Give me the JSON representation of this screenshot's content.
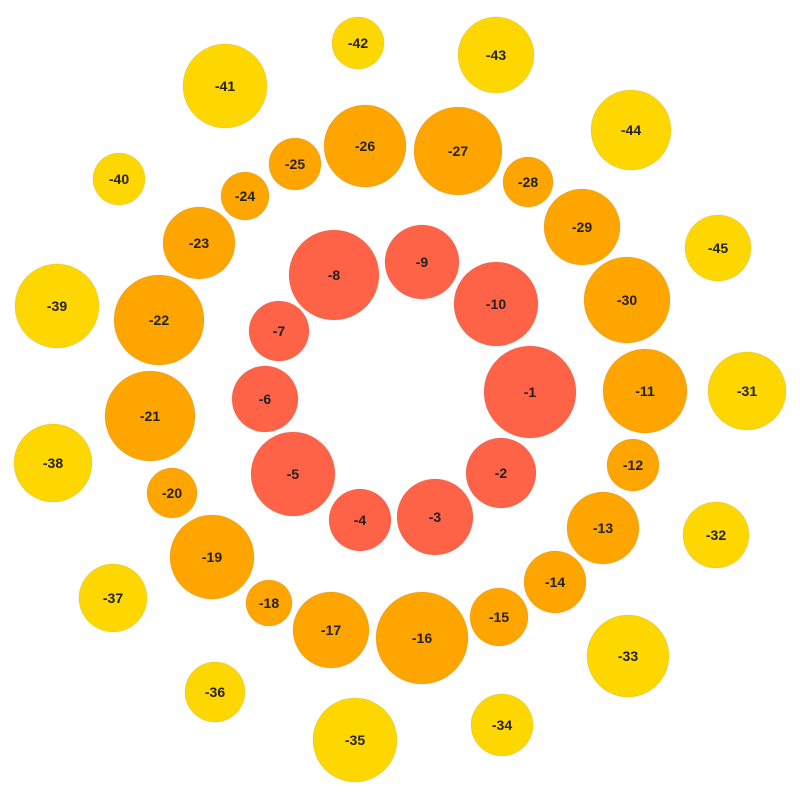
{
  "colors": {
    "inner": "#ff6347",
    "middle": "#ffa500",
    "outer": "#ffd700",
    "label": "#222222"
  },
  "bubbles": [
    {
      "label": "-1",
      "ring": "inner",
      "value": 1
    },
    {
      "label": "-2",
      "ring": "inner",
      "value": 2
    },
    {
      "label": "-3",
      "ring": "inner",
      "value": 3
    },
    {
      "label": "-4",
      "ring": "inner",
      "value": 4
    },
    {
      "label": "-5",
      "ring": "inner",
      "value": 5
    },
    {
      "label": "-6",
      "ring": "inner",
      "value": 6
    },
    {
      "label": "-7",
      "ring": "inner",
      "value": 7
    },
    {
      "label": "-8",
      "ring": "inner",
      "value": 8
    },
    {
      "label": "-9",
      "ring": "inner",
      "value": 9
    },
    {
      "label": "-10",
      "ring": "inner",
      "value": 10
    },
    {
      "label": "-11",
      "ring": "middle",
      "value": 11
    },
    {
      "label": "-12",
      "ring": "middle",
      "value": 12
    },
    {
      "label": "-13",
      "ring": "middle",
      "value": 13
    },
    {
      "label": "-14",
      "ring": "middle",
      "value": 14
    },
    {
      "label": "-15",
      "ring": "middle",
      "value": 15
    },
    {
      "label": "-16",
      "ring": "middle",
      "value": 16
    },
    {
      "label": "-17",
      "ring": "middle",
      "value": 17
    },
    {
      "label": "-18",
      "ring": "middle",
      "value": 18
    },
    {
      "label": "-19",
      "ring": "middle",
      "value": 19
    },
    {
      "label": "-20",
      "ring": "middle",
      "value": 20
    },
    {
      "label": "-21",
      "ring": "middle",
      "value": 21
    },
    {
      "label": "-22",
      "ring": "middle",
      "value": 22
    },
    {
      "label": "-23",
      "ring": "middle",
      "value": 23
    },
    {
      "label": "-24",
      "ring": "middle",
      "value": 24
    },
    {
      "label": "-25",
      "ring": "middle",
      "value": 25
    },
    {
      "label": "-26",
      "ring": "middle",
      "value": 26
    },
    {
      "label": "-27",
      "ring": "middle",
      "value": 27
    },
    {
      "label": "-28",
      "ring": "middle",
      "value": 28
    },
    {
      "label": "-29",
      "ring": "middle",
      "value": 29
    },
    {
      "label": "-30",
      "ring": "middle",
      "value": 30
    },
    {
      "label": "-31",
      "ring": "outer",
      "value": 31
    },
    {
      "label": "-32",
      "ring": "outer",
      "value": 32
    },
    {
      "label": "-33",
      "ring": "outer",
      "value": 33
    },
    {
      "label": "-34",
      "ring": "outer",
      "value": 34
    },
    {
      "label": "-35",
      "ring": "outer",
      "value": 35
    },
    {
      "label": "-36",
      "ring": "outer",
      "value": 36
    },
    {
      "label": "-37",
      "ring": "outer",
      "value": 37
    },
    {
      "label": "-38",
      "ring": "outer",
      "value": 38
    },
    {
      "label": "-39",
      "ring": "outer",
      "value": 39
    },
    {
      "label": "-40",
      "ring": "outer",
      "value": 40
    },
    {
      "label": "-41",
      "ring": "outer",
      "value": 41
    },
    {
      "label": "-42",
      "ring": "outer",
      "value": 42
    },
    {
      "label": "-43",
      "ring": "outer",
      "value": 43
    },
    {
      "label": "-44",
      "ring": "outer",
      "value": 44
    },
    {
      "label": "-45",
      "ring": "outer",
      "value": 45
    }
  ]
}
